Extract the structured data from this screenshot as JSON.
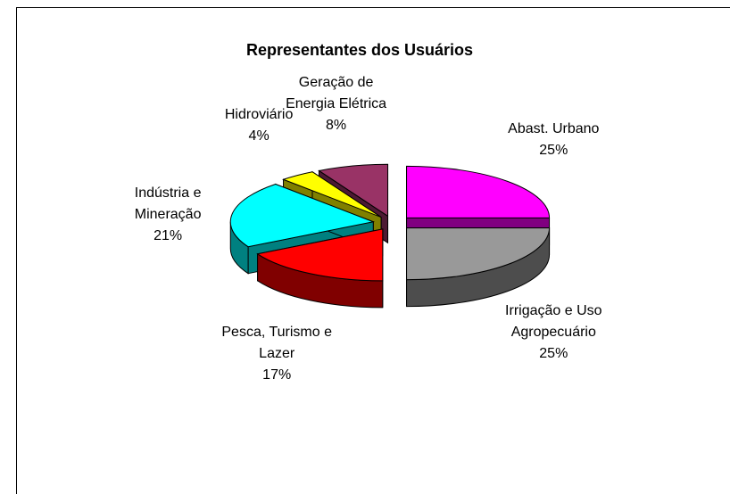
{
  "chart_data": {
    "type": "pie3d",
    "title": "Representantes dos  Usuários",
    "categories": [
      "Abast. Urbano",
      "Irrigação e Uso Agropecuário",
      "Pesca, Turismo e Lazer",
      "Indústria e Mineração",
      "Hidroviário",
      "Geração de Energia Elétrica"
    ],
    "values": [
      25,
      25,
      17,
      21,
      4,
      8
    ],
    "value_labels": [
      "25%",
      "25%",
      "17%",
      "21%",
      "4%",
      "8%"
    ],
    "colors": [
      "#ff00ff",
      "#999999",
      "#ff0000",
      "#00ffff",
      "#ffff00",
      "#993366"
    ]
  }
}
